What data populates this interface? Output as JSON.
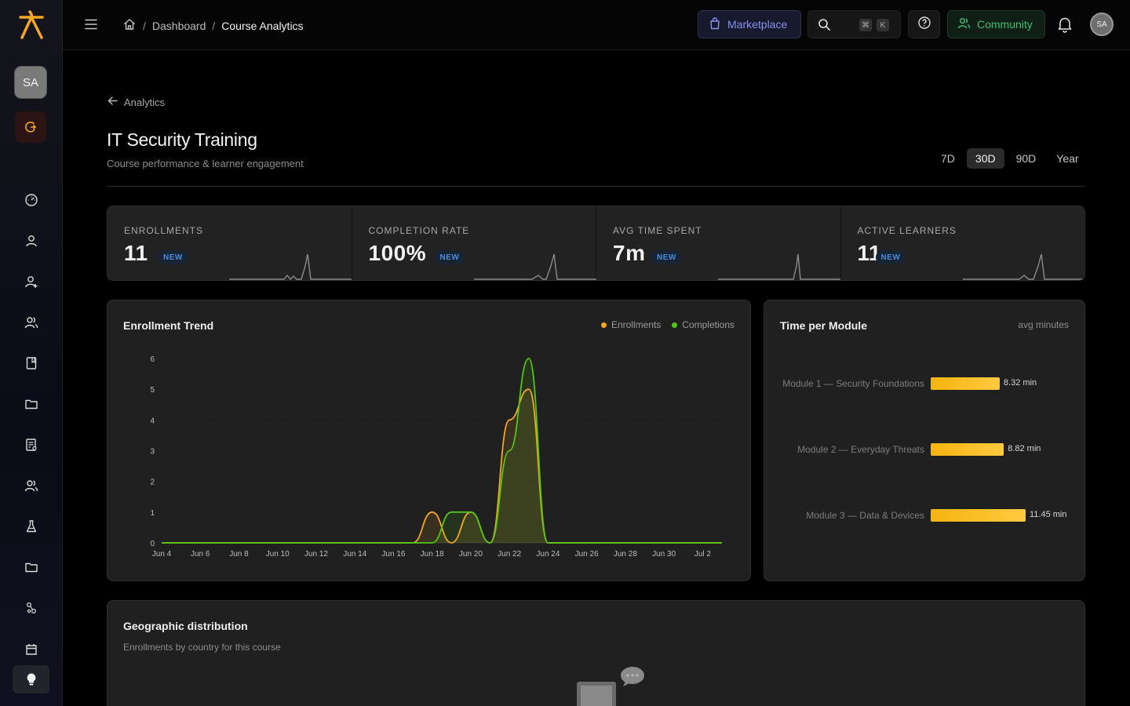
{
  "sidebar": {
    "avatar": "SA",
    "icons": [
      "dashboard-icon",
      "user-icon",
      "user-add-icon",
      "users-icon",
      "book-icon",
      "folder-icon",
      "report-icon",
      "team-icon",
      "lab-icon",
      "folder-icon",
      "connections-icon",
      "calendar-icon"
    ],
    "tip_icon": "lightbulb-icon"
  },
  "topbar": {
    "breadcrumb": {
      "home_icon": "home-icon",
      "dashboard": "Dashboard",
      "current": "Course Analytics"
    },
    "marketplace_label": "Marketplace",
    "shortcut_cmd": "⌘",
    "shortcut_key": "K",
    "community_label": "Community",
    "avatar": "SA"
  },
  "page": {
    "back_label": "Analytics",
    "title": "IT Security Training",
    "subtitle": "Course performance & learner engagement",
    "ranges": [
      "7D",
      "30D",
      "90D",
      "Year"
    ],
    "active_range": "30D"
  },
  "kpis": [
    {
      "label": "ENROLLMENTS",
      "value": "11",
      "badge": "NEW"
    },
    {
      "label": "COMPLETION RATE",
      "value": "100%",
      "badge": "NEW"
    },
    {
      "label": "AVG TIME SPENT",
      "value": "7m",
      "badge": "NEW"
    },
    {
      "label": "ACTIVE LEARNERS",
      "value": "11",
      "badge": "NEW"
    }
  ],
  "trend": {
    "title": "Enrollment Trend",
    "legend": [
      "Enrollments",
      "Completions"
    ],
    "colors": {
      "enrollments": "#f5a623",
      "completions": "#52c41a"
    }
  },
  "modules": {
    "title": "Time per Module",
    "note": "avg minutes",
    "items": [
      {
        "name": "Module 1 — Security Foundations",
        "value_label": "8.32 min"
      },
      {
        "name": "Module 2 — Everyday Threats",
        "value_label": "8.82 min"
      },
      {
        "name": "Module 3 — Data & Devices",
        "value_label": "11.45 min"
      }
    ]
  },
  "geo": {
    "title": "Geographic distribution",
    "subtitle": "Enrollments by country for this course"
  },
  "chart_data": [
    {
      "type": "line",
      "title": "Enrollment Trend",
      "x": [
        "Jun 4",
        "Jun 5",
        "Jun 6",
        "Jun 7",
        "Jun 8",
        "Jun 9",
        "Jun 10",
        "Jun 11",
        "Jun 12",
        "Jun 13",
        "Jun 14",
        "Jun 15",
        "Jun 16",
        "Jun 17",
        "Jun 18",
        "Jun 19",
        "Jun 20",
        "Jun 21",
        "Jun 22",
        "Jun 23",
        "Jun 24",
        "Jun 25",
        "Jun 26",
        "Jun 27",
        "Jun 28",
        "Jun 29",
        "Jun 30",
        "Jul 1",
        "Jul 2",
        "Jul 3"
      ],
      "x_ticks": [
        "Jun 4",
        "Jun 6",
        "Jun 8",
        "Jun 10",
        "Jun 12",
        "Jun 14",
        "Jun 16",
        "Jun 18",
        "Jun 20",
        "Jun 22",
        "Jun 24",
        "Jun 26",
        "Jun 28",
        "Jun 30",
        "Jul 2"
      ],
      "series": [
        {
          "name": "Enrollments",
          "values": [
            0,
            0,
            0,
            0,
            0,
            0,
            0,
            0,
            0,
            0,
            0,
            0,
            0,
            0,
            1,
            0,
            1,
            0,
            4,
            5,
            0,
            0,
            0,
            0,
            0,
            0,
            0,
            0,
            0,
            0
          ]
        },
        {
          "name": "Completions",
          "values": [
            0,
            0,
            0,
            0,
            0,
            0,
            0,
            0,
            0,
            0,
            0,
            0,
            0,
            0,
            0,
            1,
            1,
            0,
            3,
            6,
            0,
            0,
            0,
            0,
            0,
            0,
            0,
            0,
            0,
            0
          ]
        }
      ],
      "ylim": [
        0,
        6
      ],
      "y_ticks": [
        0,
        1,
        2,
        3,
        4,
        5,
        6
      ],
      "grid": true,
      "legend": "top-right"
    },
    {
      "type": "bar",
      "title": "Time per Module",
      "categories": [
        "Module 1 — Security Foundations",
        "Module 2 — Everyday Threats",
        "Module 3 — Data & Devices"
      ],
      "values": [
        8.32,
        8.82,
        11.45
      ],
      "orientation": "horizontal",
      "unit": "min"
    }
  ]
}
